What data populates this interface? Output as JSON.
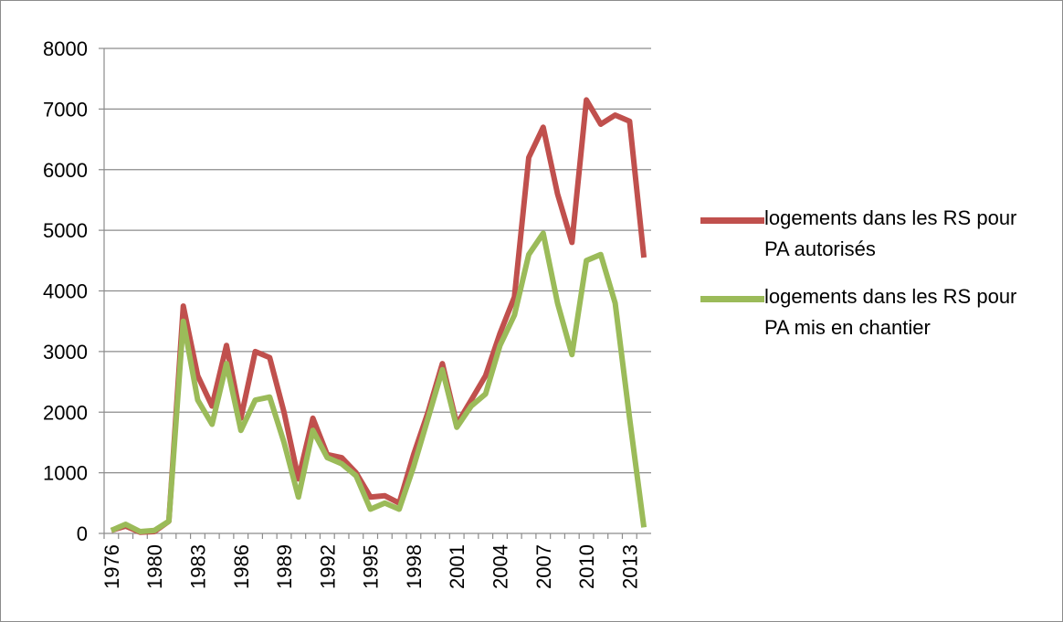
{
  "chart_data": {
    "type": "line",
    "categories": [
      "1976",
      null,
      null,
      "1980",
      null,
      null,
      "1983",
      null,
      null,
      "1986",
      null,
      null,
      "1989",
      null,
      null,
      "1992",
      null,
      null,
      "1995",
      null,
      null,
      "1998",
      null,
      null,
      "2001",
      null,
      null,
      "2004",
      null,
      null,
      "2007",
      null,
      null,
      "2010",
      null,
      null,
      "2013",
      null
    ],
    "series": [
      {
        "name": "logements dans les RS pour PA autorisés",
        "color": "#c0504d",
        "values": [
          50,
          120,
          20,
          30,
          200,
          3750,
          2600,
          2100,
          3100,
          1900,
          3000,
          2900,
          2000,
          900,
          1900,
          1300,
          1250,
          1000,
          600,
          620,
          500,
          1300,
          2000,
          2800,
          1800,
          2200,
          2600,
          3300,
          3900,
          6200,
          6700,
          5600,
          4800,
          7150,
          6750,
          6900,
          6800,
          4550
        ]
      },
      {
        "name": "logements dans les RS pour PA mis en chantier",
        "color": "#9bbb59",
        "values": [
          50,
          150,
          30,
          50,
          200,
          3500,
          2200,
          1800,
          2800,
          1700,
          2200,
          2250,
          1500,
          600,
          1700,
          1250,
          1150,
          950,
          400,
          500,
          400,
          1100,
          1900,
          2700,
          1750,
          2100,
          2300,
          3100,
          3600,
          4600,
          4950,
          3800,
          2950,
          4500,
          4600,
          3800,
          1900,
          100
        ]
      }
    ],
    "ylim": [
      0,
      8000
    ],
    "yticks": [
      0,
      1000,
      2000,
      3000,
      4000,
      5000,
      6000,
      7000,
      8000
    ],
    "grid": true,
    "legend": "right"
  }
}
